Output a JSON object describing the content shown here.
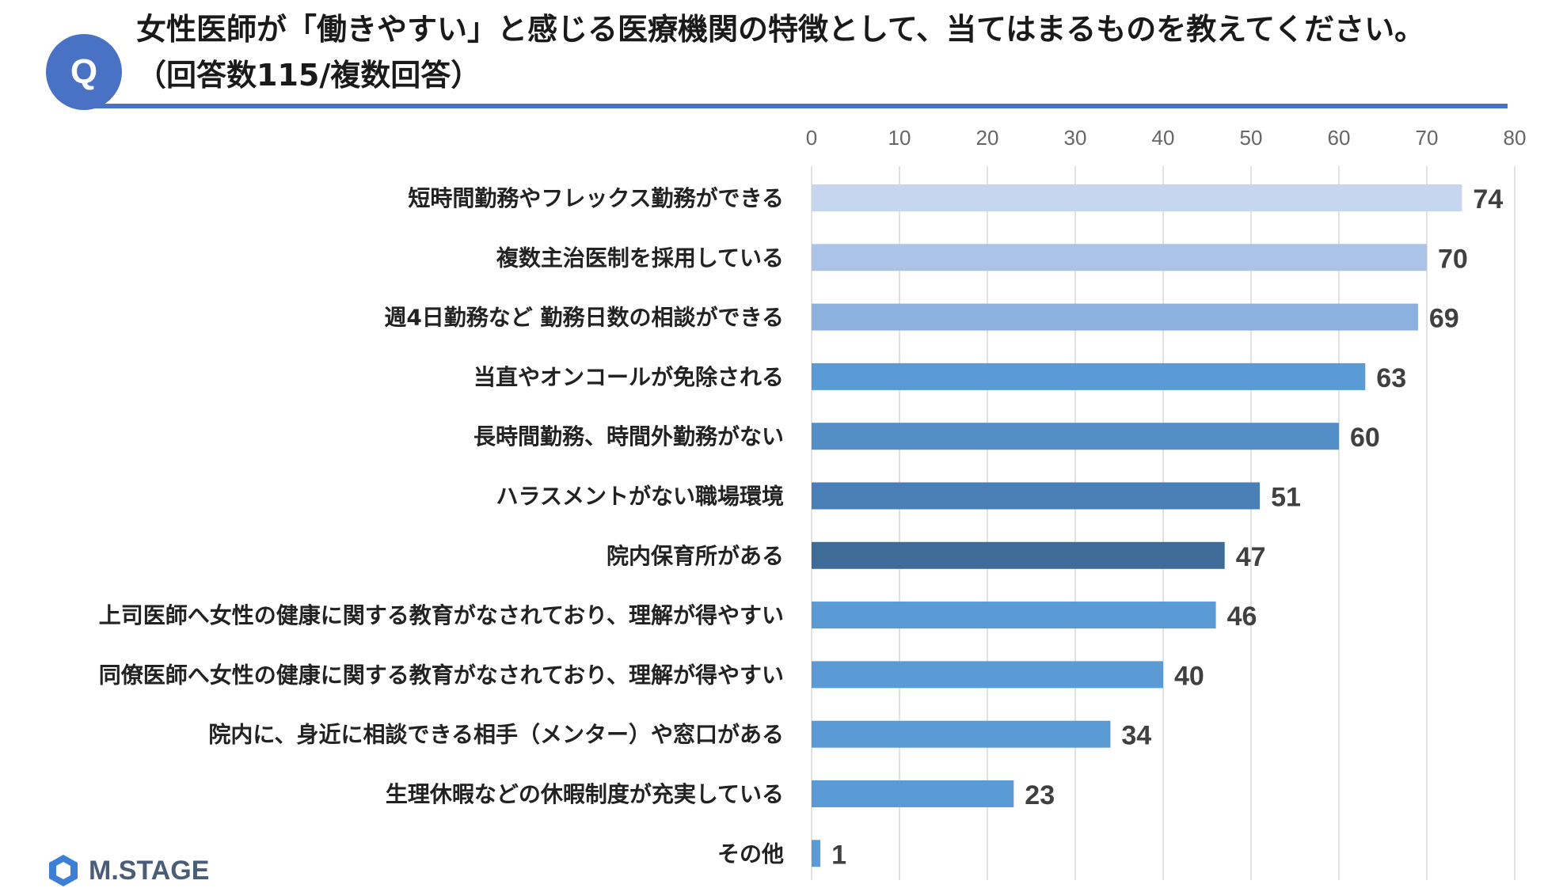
{
  "header": {
    "q_badge": "Q",
    "title": "女性医師が「働きやすい」と感じる医療機関の特徴として、当てはまるものを教えてください。",
    "subtitle": "（回答数115/複数回答）"
  },
  "logo": {
    "text": "M.STAGE"
  },
  "colors": {
    "accent": "#4a72c4",
    "bars": [
      "#c6d6ee",
      "#aac3e6",
      "#8cb1df",
      "#5b9bd5",
      "#538ec7",
      "#4a7fb5",
      "#3f6b98",
      "#5b9bd5",
      "#5b9bd5",
      "#5b9bd5",
      "#5b9bd5",
      "#5b9bd5"
    ]
  },
  "chart_data": {
    "type": "bar",
    "orientation": "horizontal",
    "categories": [
      "短時間勤務やフレックス勤務ができる",
      "複数主治医制を採用している",
      "週4日勤務など 勤務日数の相談ができる",
      "当直やオンコールが免除される",
      "長時間勤務、時間外勤務がない",
      "ハラスメントがない職場環境",
      "院内保育所がある",
      "上司医師へ女性の健康に関する教育がなされており、理解が得やすい",
      "同僚医師へ女性の健康に関する教育がなされており、理解が得やすい",
      "院内に、身近に相談できる相手（メンター）や窓口がある",
      "生理休暇などの休暇制度が充実している",
      "その他"
    ],
    "values": [
      74,
      70,
      69,
      63,
      60,
      51,
      47,
      46,
      40,
      34,
      23,
      1
    ],
    "xlim": [
      0,
      80
    ],
    "ticks": [
      "0",
      "10",
      "20",
      "30",
      "40",
      "50",
      "60",
      "70",
      "80"
    ],
    "grid": true,
    "data_labels": true
  }
}
